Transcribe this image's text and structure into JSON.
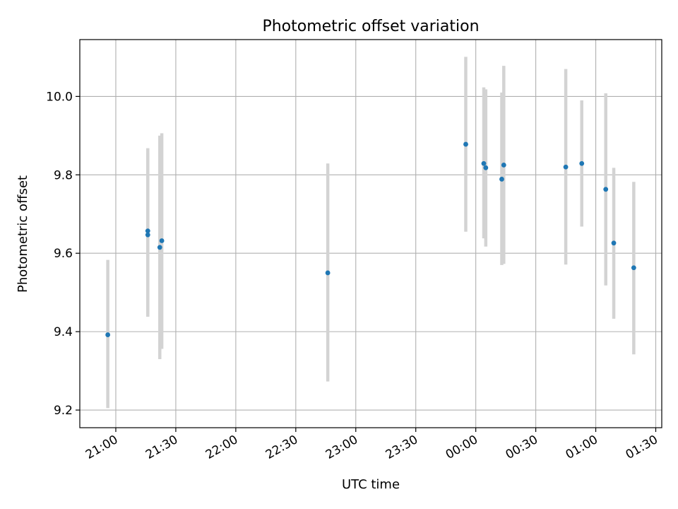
{
  "chart_data": {
    "type": "scatter",
    "title": "Photometric offset variation",
    "xlabel": "UTC time",
    "ylabel": "Photometric offset",
    "x_unit": "UTC hh:mm",
    "xlim": [
      "20:42",
      "01:33"
    ],
    "ylim": [
      9.155,
      10.145
    ],
    "grid": true,
    "x_ticks": [
      "21:00",
      "21:30",
      "22:00",
      "22:30",
      "23:00",
      "23:30",
      "00:00",
      "00:30",
      "01:00",
      "01:30"
    ],
    "y_ticks": [
      "9.2",
      "9.4",
      "9.6",
      "9.8",
      "10.0"
    ],
    "series": [
      {
        "color": "#1f77b4",
        "errorbar_color": "#d3d3d3",
        "points": [
          {
            "x": "20:56",
            "y": 9.392,
            "ylo": 9.205,
            "yhi": 9.583
          },
          {
            "x": "21:16",
            "y": 9.647,
            "ylo": 9.438,
            "yhi": 9.857
          },
          {
            "x": "21:16",
            "y": 9.657,
            "ylo": 9.445,
            "yhi": 9.868
          },
          {
            "x": "21:22",
            "y": 9.615,
            "ylo": 9.33,
            "yhi": 9.9
          },
          {
            "x": "21:23",
            "y": 9.632,
            "ylo": 9.356,
            "yhi": 9.906
          },
          {
            "x": "22:46",
            "y": 9.55,
            "ylo": 9.273,
            "yhi": 9.829
          },
          {
            "x": "23:55",
            "y": 9.878,
            "ylo": 9.655,
            "yhi": 10.101
          },
          {
            "x": "00:04",
            "y": 9.829,
            "ylo": 9.638,
            "yhi": 10.023
          },
          {
            "x": "00:05",
            "y": 9.818,
            "ylo": 9.617,
            "yhi": 10.018
          },
          {
            "x": "00:13",
            "y": 9.789,
            "ylo": 9.57,
            "yhi": 10.01
          },
          {
            "x": "00:14",
            "y": 9.825,
            "ylo": 9.573,
            "yhi": 10.078
          },
          {
            "x": "00:45",
            "y": 9.82,
            "ylo": 9.571,
            "yhi": 10.07
          },
          {
            "x": "00:53",
            "y": 9.829,
            "ylo": 9.668,
            "yhi": 9.99
          },
          {
            "x": "01:05",
            "y": 9.763,
            "ylo": 9.518,
            "yhi": 10.008
          },
          {
            "x": "01:09",
            "y": 9.626,
            "ylo": 9.433,
            "yhi": 9.818
          },
          {
            "x": "01:19",
            "y": 9.563,
            "ylo": 9.342,
            "yhi": 9.782
          }
        ]
      }
    ]
  }
}
